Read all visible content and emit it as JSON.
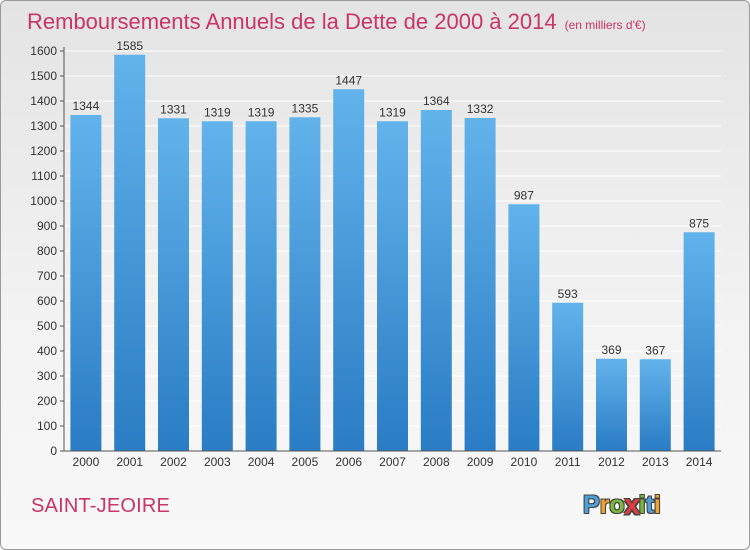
{
  "title": "Remboursements Annuels de la Dette de 2000 à 2014",
  "title_unit": "(en milliers d'€)",
  "commune": "SAINT-JEOIRE",
  "logo": {
    "text": "Proxiti",
    "letters": [
      {
        "char": "P",
        "color": "#4f9fd8"
      },
      {
        "char": "r",
        "color": "#f0a22e"
      },
      {
        "char": "o",
        "color": "#79b83a"
      },
      {
        "char": "x",
        "color": "#e23b3b"
      },
      {
        "char": "i",
        "color": "#79b83a"
      },
      {
        "char": "t",
        "color": "#4f9fd8"
      },
      {
        "char": "i",
        "color": "#f0a22e"
      }
    ]
  },
  "colors": {
    "bar_top": "#62b3eb",
    "bar_bottom": "#2a7cc4",
    "title": "#cc3366",
    "grid": "#ffffff",
    "axis": "#555555"
  },
  "chart_data": {
    "type": "bar",
    "categories": [
      "2000",
      "2001",
      "2002",
      "2003",
      "2004",
      "2005",
      "2006",
      "2007",
      "2008",
      "2009",
      "2010",
      "2011",
      "2012",
      "2013",
      "2014"
    ],
    "values": [
      1344,
      1585,
      1331,
      1319,
      1319,
      1335,
      1447,
      1319,
      1364,
      1332,
      987,
      593,
      369,
      367,
      875
    ],
    "data_labels": [
      "1344",
      "1585",
      "1331",
      "1319",
      "1319",
      "1335",
      "1447",
      "1319",
      "1364",
      "1332",
      "987",
      "593",
      "369",
      "367",
      "875"
    ],
    "ylim": [
      0,
      1600
    ],
    "yticks": [
      0,
      100,
      200,
      300,
      400,
      500,
      600,
      700,
      800,
      900,
      1000,
      1100,
      1200,
      1300,
      1400,
      1500,
      1600
    ],
    "grid": true,
    "legend": "none"
  }
}
